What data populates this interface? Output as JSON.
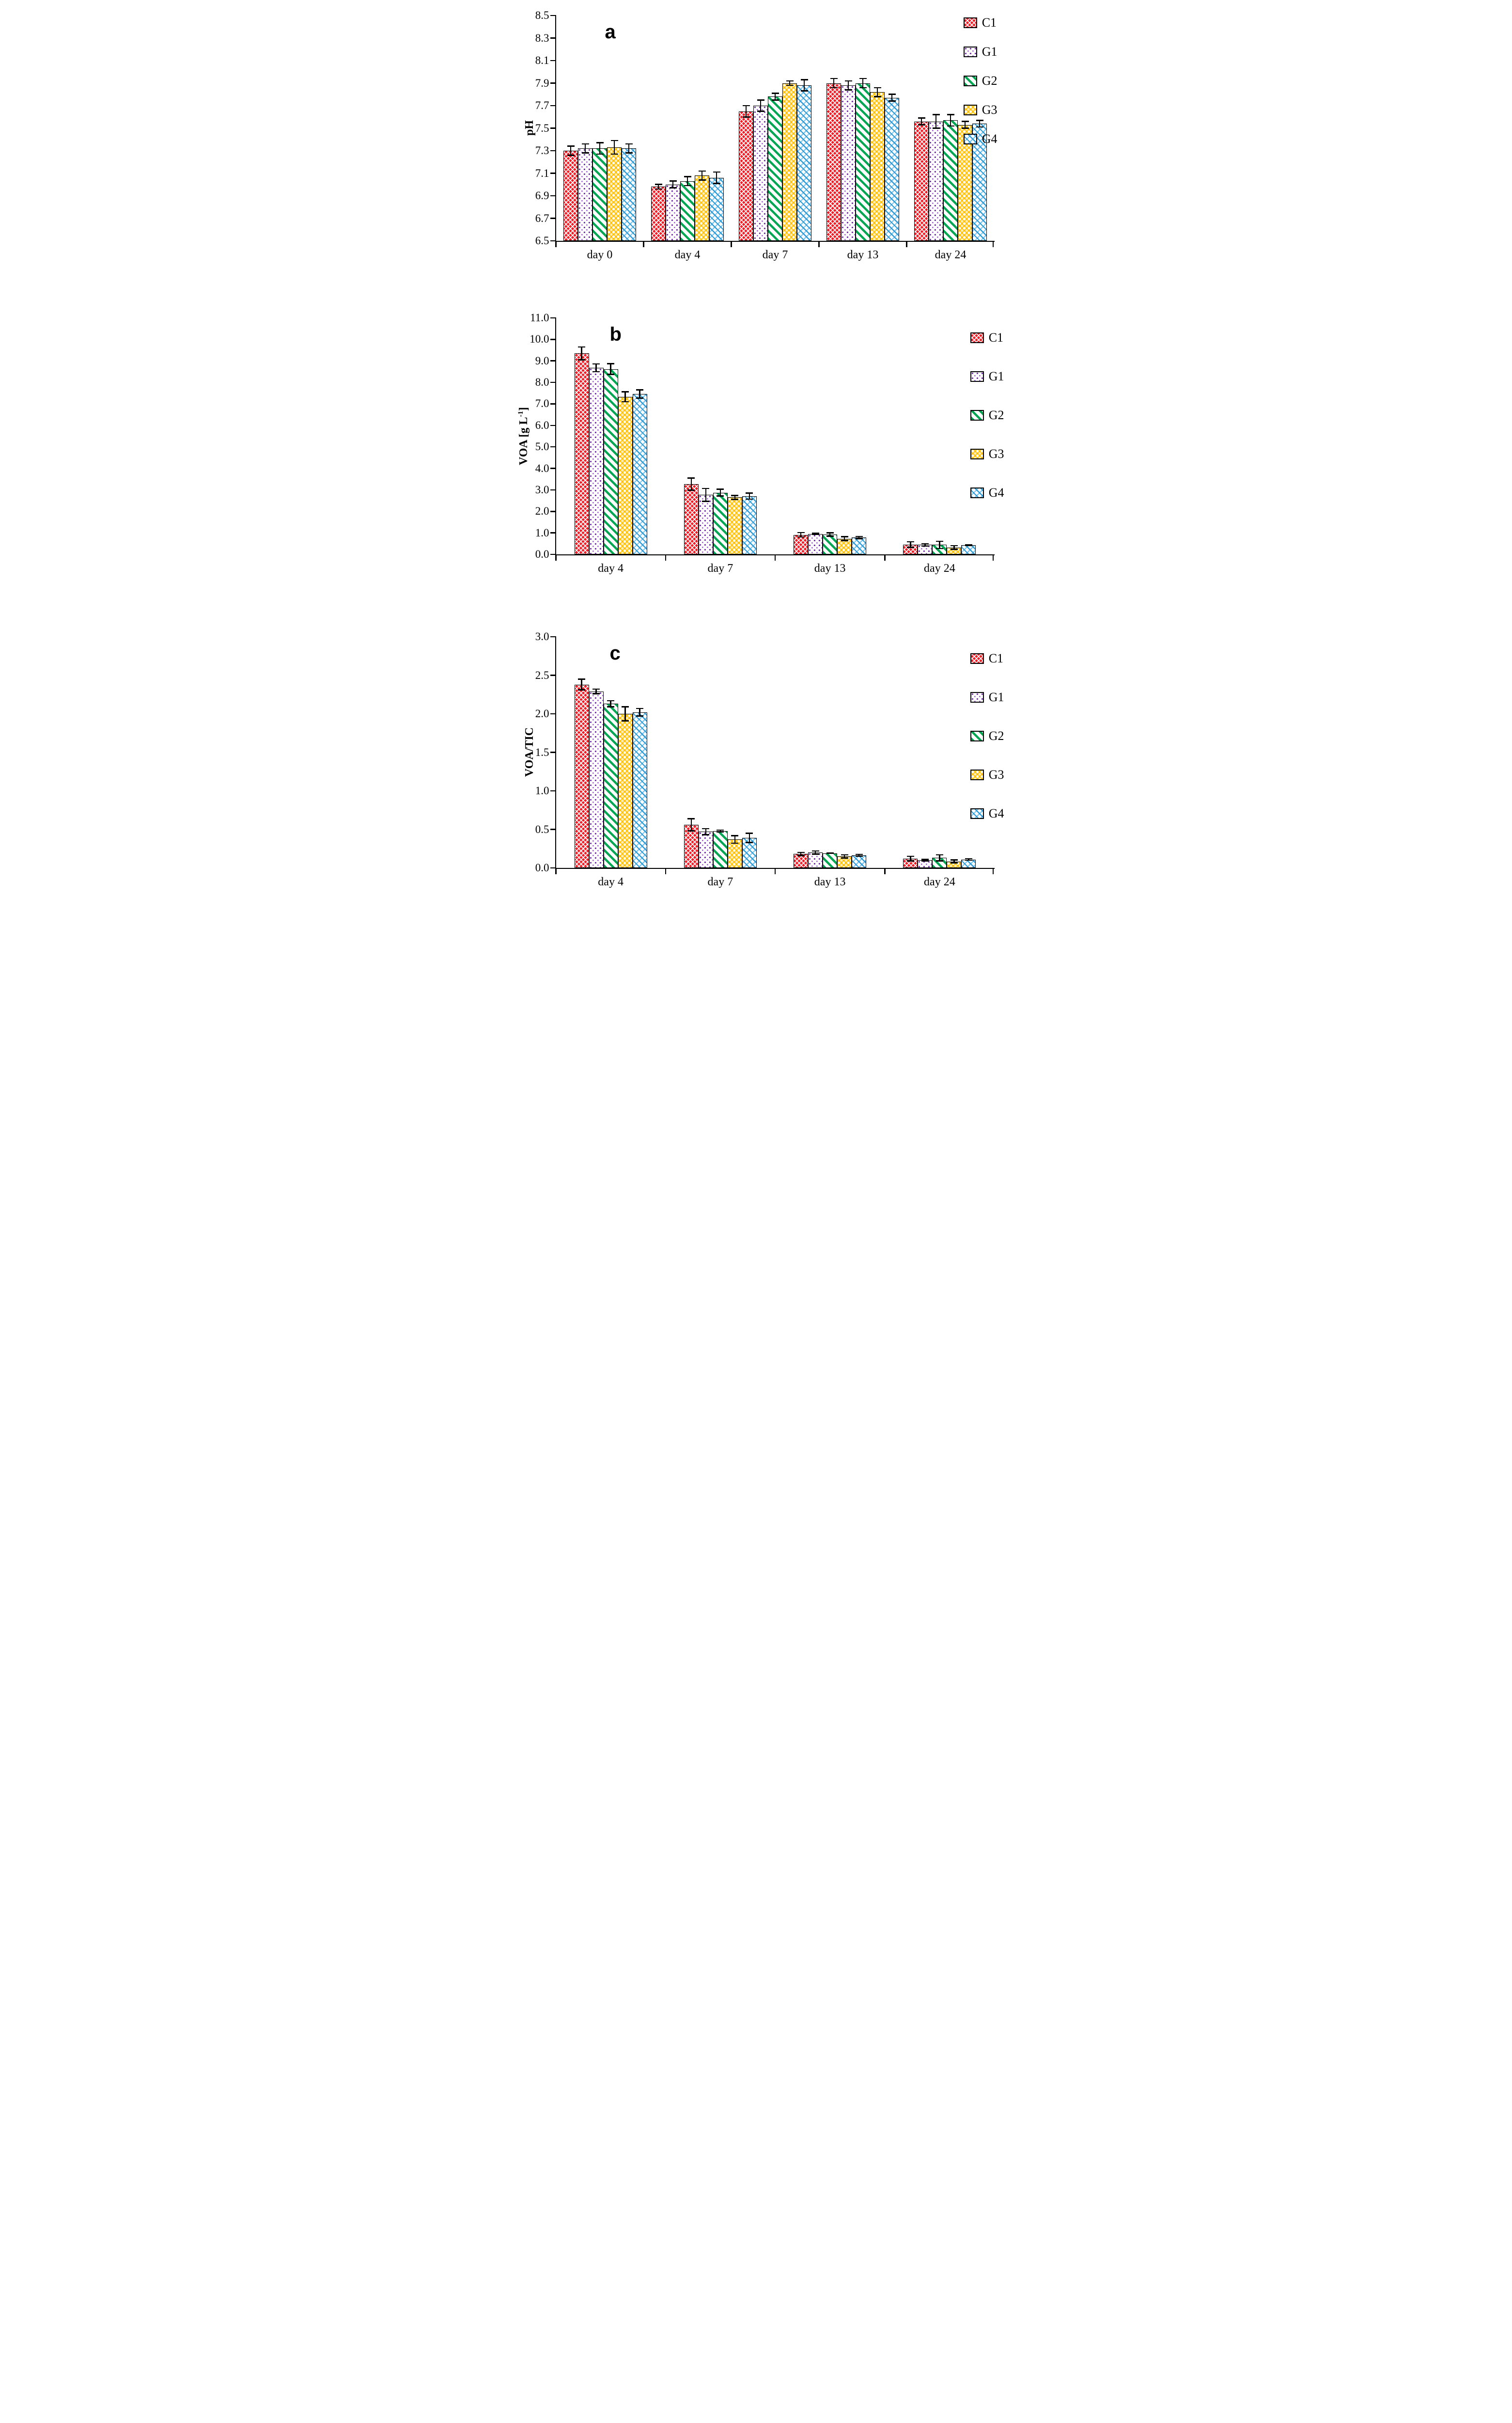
{
  "figure": {
    "background": "#ffffff",
    "axis_color": "#000000",
    "error_bar_color": "#000000"
  },
  "series": [
    {
      "label": "C1",
      "color": "#ee1c25",
      "pattern": "red-crosshatch"
    },
    {
      "label": "G1",
      "color": "#7030a0",
      "pattern": "purple-dots"
    },
    {
      "label": "G2",
      "color": "#00a651",
      "pattern": "green-stripes"
    },
    {
      "label": "G3",
      "color": "#ffc10a",
      "pattern": "yellow-checker"
    },
    {
      "label": "G4",
      "color": "#2e9bd6",
      "pattern": "blue-crosshatch"
    }
  ],
  "chart_data": [
    {
      "id": "a",
      "type": "bar",
      "panel_label": "a",
      "ylabel_main": "pH",
      "ylabel_sup": "",
      "ylabel_tail": "",
      "categories": [
        "day 0",
        "day 4",
        "day 7",
        "day 13",
        "day 24"
      ],
      "ylim": [
        6.5,
        8.5
      ],
      "ytick_step": 0.2,
      "ytick_decimals": 1,
      "grid": false,
      "legend_position": "top-right",
      "series": [
        {
          "name": "C1",
          "values": [
            7.3,
            6.98,
            7.65,
            7.9,
            7.56
          ],
          "errors": [
            0.04,
            0.02,
            0.05,
            0.04,
            0.03
          ]
        },
        {
          "name": "G1",
          "values": [
            7.32,
            7.0,
            7.7,
            7.88,
            7.56
          ],
          "errors": [
            0.04,
            0.03,
            0.05,
            0.04,
            0.06
          ]
        },
        {
          "name": "G2",
          "values": [
            7.32,
            7.03,
            7.78,
            7.9,
            7.57
          ],
          "errors": [
            0.05,
            0.04,
            0.03,
            0.04,
            0.05
          ]
        },
        {
          "name": "G3",
          "values": [
            7.33,
            7.08,
            7.9,
            7.82,
            7.53
          ],
          "errors": [
            0.06,
            0.04,
            0.02,
            0.04,
            0.03
          ]
        },
        {
          "name": "G4",
          "values": [
            7.32,
            7.06,
            7.88,
            7.77,
            7.54
          ],
          "errors": [
            0.04,
            0.05,
            0.05,
            0.03,
            0.03
          ]
        }
      ]
    },
    {
      "id": "b",
      "type": "bar",
      "panel_label": "b",
      "ylabel_main": "VOA [g L",
      "ylabel_sup": "-1",
      "ylabel_tail": "]",
      "categories": [
        "day 4",
        "day 7",
        "day 13",
        "day 24"
      ],
      "ylim": [
        0.0,
        11.0
      ],
      "ytick_step": 1.0,
      "ytick_decimals": 1,
      "grid": false,
      "legend_position": "top-right",
      "series": [
        {
          "name": "C1",
          "values": [
            9.35,
            3.27,
            0.91,
            0.46
          ],
          "errors": [
            0.3,
            0.28,
            0.1,
            0.13
          ]
        },
        {
          "name": "G1",
          "values": [
            8.68,
            2.77,
            0.95,
            0.44
          ],
          "errors": [
            0.18,
            0.3,
            0.03,
            0.06
          ]
        },
        {
          "name": "G2",
          "values": [
            8.62,
            2.87,
            0.92,
            0.44
          ],
          "errors": [
            0.25,
            0.16,
            0.08,
            0.17
          ]
        },
        {
          "name": "G3",
          "values": [
            7.33,
            2.65,
            0.73,
            0.32
          ],
          "errors": [
            0.23,
            0.09,
            0.09,
            0.09
          ]
        },
        {
          "name": "G4",
          "values": [
            7.46,
            2.71,
            0.78,
            0.43
          ],
          "errors": [
            0.19,
            0.14,
            0.05,
            0.02
          ]
        }
      ]
    },
    {
      "id": "c",
      "type": "bar",
      "panel_label": "c",
      "ylabel_main": "VOA/TIC",
      "ylabel_sup": "",
      "ylabel_tail": "",
      "categories": [
        "day 4",
        "day 7",
        "day 13",
        "day 24"
      ],
      "ylim": [
        0.0,
        3.0
      ],
      "ytick_step": 0.5,
      "ytick_decimals": 1,
      "grid": false,
      "legend_position": "top-right",
      "series": [
        {
          "name": "C1",
          "values": [
            2.38,
            0.56,
            0.18,
            0.12
          ],
          "errors": [
            0.07,
            0.08,
            0.02,
            0.03
          ]
        },
        {
          "name": "G1",
          "values": [
            2.29,
            0.47,
            0.2,
            0.1
          ],
          "errors": [
            0.03,
            0.04,
            0.02,
            0.01
          ]
        },
        {
          "name": "G2",
          "values": [
            2.13,
            0.48,
            0.19,
            0.13
          ],
          "errors": [
            0.04,
            0.01,
            0.0,
            0.04
          ]
        },
        {
          "name": "G3",
          "values": [
            2.0,
            0.37,
            0.15,
            0.085
          ],
          "errors": [
            0.09,
            0.05,
            0.02,
            0.02
          ]
        },
        {
          "name": "G4",
          "values": [
            2.02,
            0.39,
            0.165,
            0.11
          ],
          "errors": [
            0.05,
            0.06,
            0.01,
            0.01
          ]
        }
      ]
    }
  ]
}
